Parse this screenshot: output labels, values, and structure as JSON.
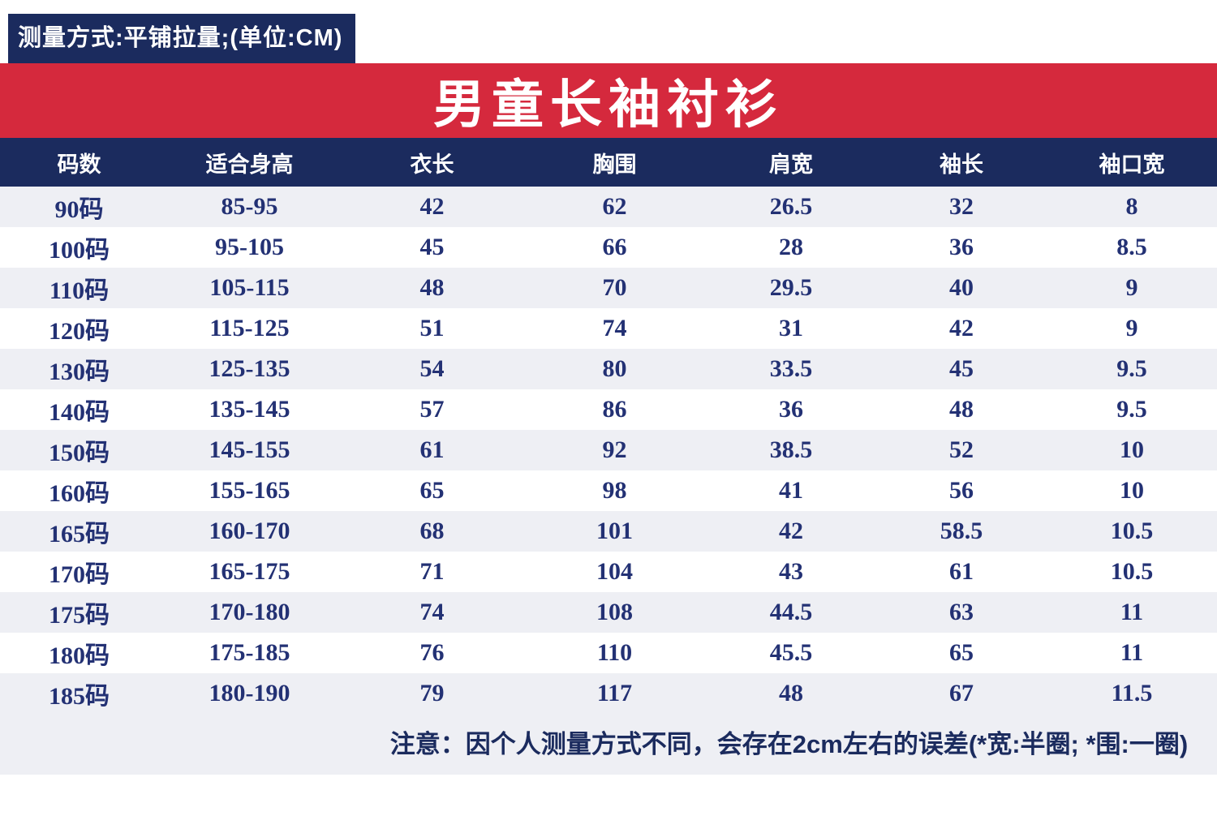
{
  "measure_note": "测量方式:平铺拉量;(单位:CM)",
  "title": "男童长袖衬衫",
  "table": {
    "headers": [
      "码数",
      "适合身高",
      "衣长",
      "胸围",
      "肩宽",
      "袖长",
      "袖口宽"
    ],
    "rows": [
      [
        "90码",
        "85-95",
        "42",
        "62",
        "26.5",
        "32",
        "8"
      ],
      [
        "100码",
        "95-105",
        "45",
        "66",
        "28",
        "36",
        "8.5"
      ],
      [
        "110码",
        "105-115",
        "48",
        "70",
        "29.5",
        "40",
        "9"
      ],
      [
        "120码",
        "115-125",
        "51",
        "74",
        "31",
        "42",
        "9"
      ],
      [
        "130码",
        "125-135",
        "54",
        "80",
        "33.5",
        "45",
        "9.5"
      ],
      [
        "140码",
        "135-145",
        "57",
        "86",
        "36",
        "48",
        "9.5"
      ],
      [
        "150码",
        "145-155",
        "61",
        "92",
        "38.5",
        "52",
        "10"
      ],
      [
        "160码",
        "155-165",
        "65",
        "98",
        "41",
        "56",
        "10"
      ],
      [
        "165码",
        "160-170",
        "68",
        "101",
        "42",
        "58.5",
        "10.5"
      ],
      [
        "170码",
        "165-175",
        "71",
        "104",
        "43",
        "61",
        "10.5"
      ],
      [
        "175码",
        "170-180",
        "74",
        "108",
        "44.5",
        "63",
        "11"
      ],
      [
        "180码",
        "175-185",
        "76",
        "110",
        "45.5",
        "65",
        "11"
      ],
      [
        "185码",
        "180-190",
        "79",
        "117",
        "48",
        "67",
        "11.5"
      ]
    ]
  },
  "footer_note": "注意：因个人测量方式不同，会存在2cm左右的误差(*宽:半圈; *围:一圈)",
  "colors": {
    "navy": "#1b2b5e",
    "red": "#d5293d",
    "row_alt": "#eeeff4",
    "text_navy": "#233174"
  }
}
